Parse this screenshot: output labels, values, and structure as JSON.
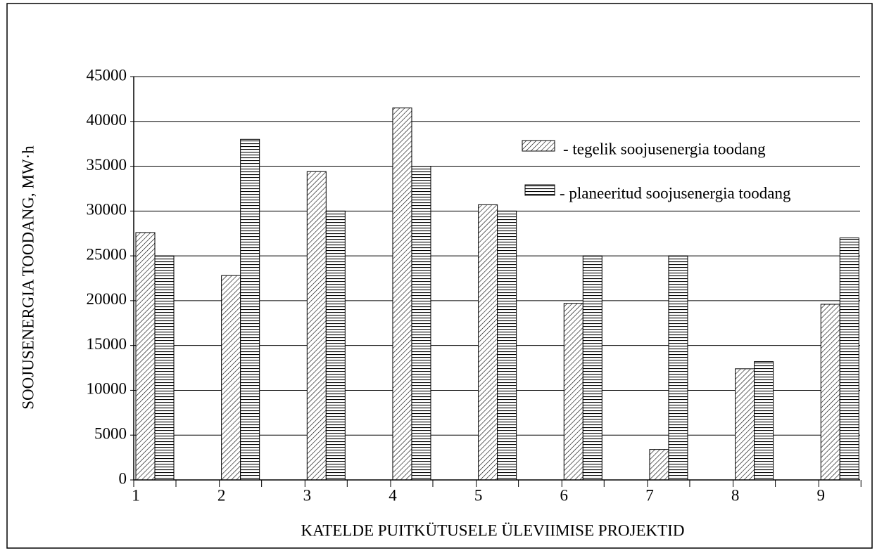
{
  "chart_data": {
    "type": "bar",
    "xlabel": "KATELDE  PUITKÜTUSELE  ÜLEVIIMISE  PROJEKTID",
    "ylabel": "SOOJUSENERGIA  TOODANG,  MW·h",
    "categories": [
      "1",
      "2",
      "3",
      "4",
      "5",
      "6",
      "7",
      "8",
      "9"
    ],
    "series": [
      {
        "name": "- tegelik soojusenergia toodang",
        "values": [
          27600,
          22800,
          34400,
          41500,
          30700,
          19700,
          3400,
          12400,
          19600
        ]
      },
      {
        "name": "- planeeritud soojusenergia toodang",
        "values": [
          25000,
          38000,
          30000,
          35000,
          30000,
          25000,
          25000,
          13200,
          27000
        ]
      }
    ],
    "ylim": [
      0,
      45000
    ],
    "yticks": [
      0,
      5000,
      10000,
      15000,
      20000,
      25000,
      30000,
      35000,
      40000,
      45000
    ],
    "grid": true
  }
}
